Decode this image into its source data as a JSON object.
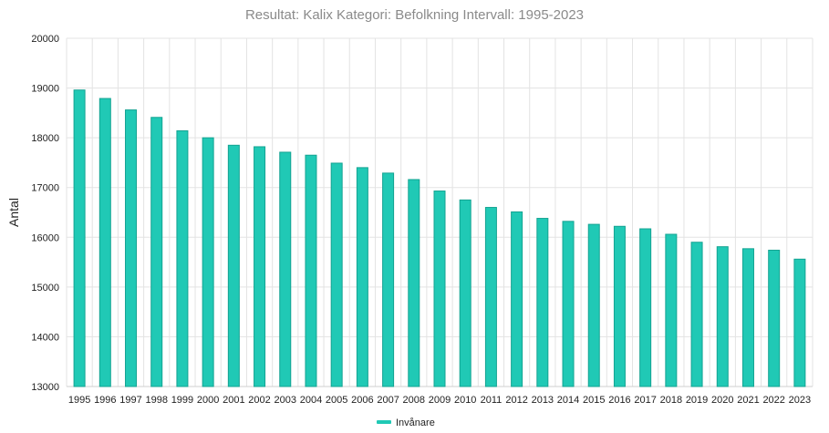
{
  "chart_data": {
    "type": "bar",
    "title": "Resultat: Kalix Kategori: Befolkning Intervall: 1995-2023",
    "xlabel": "",
    "ylabel": "Antal",
    "ylim": [
      13000,
      20000
    ],
    "yticks": [
      13000,
      14000,
      15000,
      16000,
      17000,
      18000,
      19000,
      20000
    ],
    "categories": [
      "1995",
      "1996",
      "1997",
      "1998",
      "1999",
      "2000",
      "2001",
      "2002",
      "2003",
      "2004",
      "2005",
      "2006",
      "2007",
      "2008",
      "2009",
      "2010",
      "2011",
      "2012",
      "2013",
      "2014",
      "2015",
      "2016",
      "2017",
      "2018",
      "2019",
      "2020",
      "2021",
      "2022",
      "2023"
    ],
    "series": [
      {
        "name": "Invånare",
        "color": "#20c9b5",
        "values": [
          18960,
          18790,
          18560,
          18410,
          18140,
          18000,
          17850,
          17820,
          17710,
          17650,
          17490,
          17400,
          17290,
          17160,
          16930,
          16750,
          16600,
          16510,
          16380,
          16320,
          16260,
          16220,
          16170,
          16060,
          15900,
          15810,
          15770,
          15740,
          15560
        ]
      }
    ],
    "grid": true,
    "legend_position": "bottom-center"
  }
}
